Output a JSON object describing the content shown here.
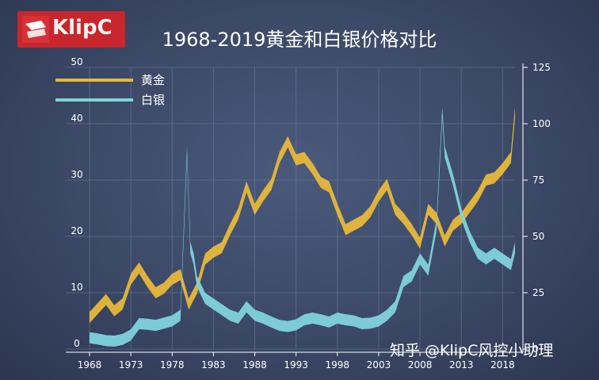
{
  "logo": {
    "text": "KlipC",
    "icon": "klipc-logo-mark"
  },
  "watermark": {
    "text": "知乎 @KlipC风控小助理"
  },
  "colors": {
    "gold": "#e8b83a",
    "silver": "#7fd3dc",
    "grid": "#6f7f9f",
    "axis": "#ffffff"
  },
  "chart_data": {
    "type": "area",
    "title": "1968-2019黄金和白银价格对比",
    "xlabel": "",
    "ylabel_left": "",
    "ylabel_right": "",
    "x_ticks": [
      1968,
      1973,
      1978,
      1983,
      1988,
      1993,
      1998,
      2003,
      2008,
      2013,
      2018
    ],
    "xlim": [
      1968,
      2019.5
    ],
    "y_left_ticks": [
      0,
      10,
      20,
      30,
      40,
      50
    ],
    "ylim_left": [
      0,
      50
    ],
    "y_right_ticks": [
      0,
      25,
      50,
      75,
      100,
      125
    ],
    "ylim_right": [
      0,
      125
    ],
    "grid": true,
    "legend": "top-left",
    "series": [
      {
        "name": "黄金",
        "axis": "right",
        "color": "#e8b83a",
        "x": [
          1968,
          1969,
          1970,
          1971,
          1972,
          1973,
          1974,
          1975,
          1976,
          1977,
          1978,
          1979,
          1980,
          1981,
          1982,
          1983,
          1984,
          1985,
          1986,
          1987,
          1988,
          1989,
          1990,
          1991,
          1992,
          1993,
          1994,
          1995,
          1996,
          1997,
          1998,
          1999,
          2000,
          2001,
          2002,
          2003,
          2004,
          2005,
          2006,
          2007,
          2008,
          2009,
          2010,
          2011,
          2012,
          2013,
          2014,
          2015,
          2016,
          2017,
          2018,
          2019,
          2019.5
        ],
        "values": [
          14,
          18,
          22,
          17,
          20,
          31,
          36,
          30,
          25,
          27,
          31,
          33,
          20,
          27,
          40,
          43,
          45,
          53,
          60,
          72,
          62,
          68,
          73,
          85,
          92,
          84,
          85,
          80,
          74,
          72,
          62,
          53,
          55,
          57,
          61,
          68,
          73,
          62,
          58,
          53,
          47,
          62,
          58,
          48,
          55,
          58,
          63,
          68,
          75,
          76,
          80,
          85,
          105
        ]
      },
      {
        "name": "白银",
        "axis": "left",
        "color": "#7fd3dc",
        "x": [
          1968,
          1969,
          1970,
          1971,
          1972,
          1973,
          1974,
          1975,
          1976,
          1977,
          1978,
          1979,
          1979.8,
          1980.2,
          1980.6,
          1981,
          1982,
          1983,
          1984,
          1985,
          1986,
          1987,
          1988,
          1989,
          1990,
          1991,
          1992,
          1993,
          1994,
          1995,
          1996,
          1997,
          1998,
          1999,
          2000,
          2001,
          2002,
          2003,
          2004,
          2005,
          2006,
          2007,
          2008,
          2009,
          2010,
          2010.7,
          2011,
          2012,
          2013,
          2014,
          2015,
          2016,
          2017,
          2018,
          2019,
          2019.5
        ],
        "values": [
          2,
          1.8,
          1.5,
          1.4,
          1.7,
          2.5,
          4.5,
          4.4,
          4.2,
          4.6,
          5,
          6,
          35,
          18,
          16,
          12,
          9,
          8,
          7,
          6,
          5.5,
          7.5,
          6,
          5.5,
          4.8,
          4.2,
          4,
          4.3,
          5.2,
          5.5,
          5.2,
          4.8,
          5.5,
          5.2,
          5,
          4.5,
          4.6,
          5,
          6,
          7.5,
          12,
          13,
          16,
          14,
          22,
          42,
          35,
          30,
          24,
          20,
          17,
          16,
          17,
          16,
          15,
          18
        ]
      }
    ]
  }
}
